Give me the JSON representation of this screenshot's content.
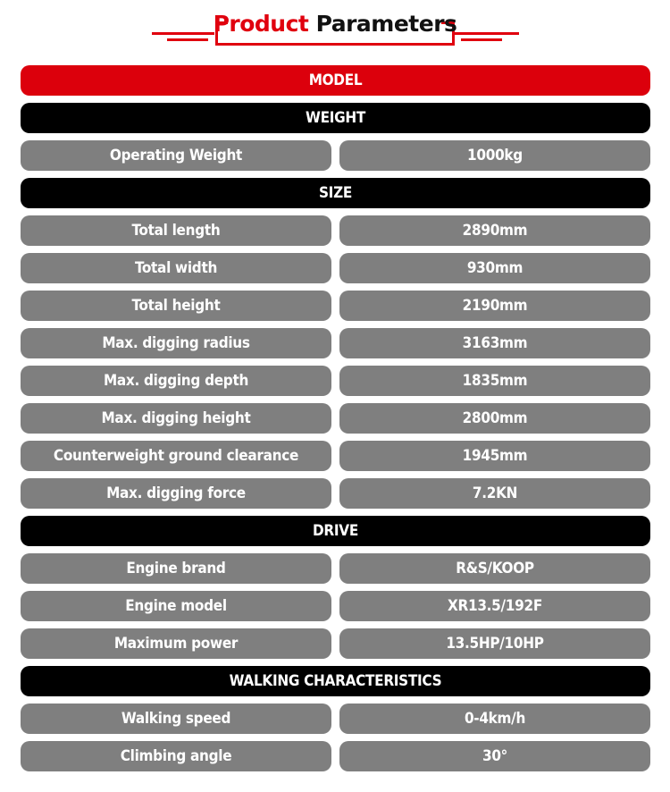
{
  "title": {
    "part1": "Product",
    "part2": "Parameters"
  },
  "colors": {
    "accent": "#dc000c",
    "section": "#000000",
    "cell": "#7f7f7f"
  },
  "rows": [
    {
      "type": "model",
      "label": "MODEL"
    },
    {
      "type": "section",
      "label": "WEIGHT"
    },
    {
      "type": "param",
      "label": "Operating Weight",
      "value": "1000kg"
    },
    {
      "type": "section",
      "label": "SIZE"
    },
    {
      "type": "param",
      "label": "Total length",
      "value": "2890mm"
    },
    {
      "type": "param",
      "label": "Total width",
      "value": "930mm"
    },
    {
      "type": "param",
      "label": "Total height",
      "value": "2190mm"
    },
    {
      "type": "param",
      "label": "Max. digging radius",
      "value": "3163mm"
    },
    {
      "type": "param",
      "label": "Max. digging depth",
      "value": "1835mm"
    },
    {
      "type": "param",
      "label": "Max. digging height",
      "value": "2800mm"
    },
    {
      "type": "param",
      "label": "Counterweight ground clearance",
      "value": "1945mm"
    },
    {
      "type": "param",
      "label": "Max. digging force",
      "value": "7.2KN"
    },
    {
      "type": "section",
      "label": "DRIVE"
    },
    {
      "type": "param",
      "label": "Engine brand",
      "value": "R&S/KOOP"
    },
    {
      "type": "param",
      "label": "Engine model",
      "value": "XR13.5/192F"
    },
    {
      "type": "param",
      "label": "Maximum power",
      "value": "13.5HP/10HP"
    },
    {
      "type": "section",
      "label": "WALKING CHARACTERISTICS"
    },
    {
      "type": "param",
      "label": "Walking speed",
      "value": "0-4km/h"
    },
    {
      "type": "param",
      "label": "Climbing angle",
      "value": "30°"
    }
  ]
}
